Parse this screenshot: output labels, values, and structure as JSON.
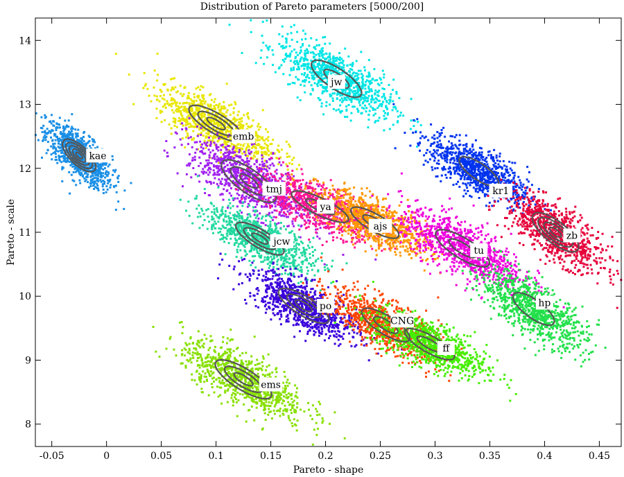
{
  "chart_data": {
    "type": "scatter",
    "title": "Distribution of Pareto parameters [5000/200]",
    "xlabel": "Pareto - shape",
    "ylabel": "Pareto - scale",
    "xlim": [
      -0.065,
      0.47
    ],
    "ylim": [
      7.65,
      14.35
    ],
    "xticks": [
      -0.05,
      0,
      0.05,
      0.1,
      0.15,
      0.2,
      0.25,
      0.3,
      0.35,
      0.4,
      0.45
    ],
    "xtick_labels": [
      "-0.05",
      "0",
      "0.05",
      "0.1",
      "0.15",
      "0.2",
      "0.25",
      "0.3",
      "0.35",
      "0.4",
      "0.45"
    ],
    "yticks": [
      8,
      9,
      10,
      11,
      12,
      13,
      14
    ],
    "ytick_labels": [
      "8",
      "9",
      "10",
      "11",
      "12",
      "13",
      "14"
    ],
    "grid": false,
    "legend": "none",
    "contour_color": "#555555",
    "series": [
      {
        "name": "kae",
        "center": [
          -0.025,
          12.2
        ],
        "spread": [
          0.015,
          0.25
        ],
        "color": "#1a8fe6",
        "label_at": [
          -0.008,
          12.2
        ],
        "rings": 5
      },
      {
        "name": "jw",
        "center": [
          0.21,
          13.4
        ],
        "spread": [
          0.026,
          0.3
        ],
        "color": "#00e5e5",
        "label_at": [
          0.21,
          13.35
        ],
        "rings": 2
      },
      {
        "name": "emb",
        "center": [
          0.1,
          12.7
        ],
        "spread": [
          0.027,
          0.28
        ],
        "color": "#e8e600",
        "label_at": [
          0.125,
          12.5
        ],
        "rings": 3
      },
      {
        "name": "tmj",
        "center": [
          0.13,
          11.8
        ],
        "spread": [
          0.027,
          0.33
        ],
        "color": "#a020f0",
        "label_at": [
          0.153,
          11.68
        ],
        "rings": 3
      },
      {
        "name": "ya",
        "center": [
          0.195,
          11.4
        ],
        "spread": [
          0.03,
          0.25
        ],
        "color": "#ff1493",
        "label_at": [
          0.2,
          11.4
        ],
        "rings": 2
      },
      {
        "name": "ajs",
        "center": [
          0.245,
          11.15
        ],
        "spread": [
          0.025,
          0.25
        ],
        "color": "#ff9900",
        "label_at": [
          0.25,
          11.1
        ],
        "rings": 2
      },
      {
        "name": "jcw",
        "center": [
          0.14,
          10.9
        ],
        "spread": [
          0.024,
          0.25
        ],
        "color": "#22d9a0",
        "label_at": [
          0.16,
          10.86
        ],
        "rings": 3
      },
      {
        "name": "kr1",
        "center": [
          0.34,
          11.95
        ],
        "spread": [
          0.023,
          0.27
        ],
        "color": "#0033ee",
        "label_at": [
          0.36,
          11.65
        ],
        "rings": 1
      },
      {
        "name": "tu",
        "center": [
          0.325,
          10.75
        ],
        "spread": [
          0.028,
          0.3
        ],
        "color": "#ee00dd",
        "label_at": [
          0.34,
          10.72
        ],
        "rings": 2
      },
      {
        "name": "zb",
        "center": [
          0.41,
          11.0
        ],
        "spread": [
          0.022,
          0.3
        ],
        "color": "#e6003a",
        "label_at": [
          0.425,
          10.95
        ],
        "rings": 4
      },
      {
        "name": "hp",
        "center": [
          0.39,
          9.8
        ],
        "spread": [
          0.024,
          0.3
        ],
        "color": "#22e04a",
        "label_at": [
          0.4,
          9.9
        ],
        "rings": 1
      },
      {
        "name": "po",
        "center": [
          0.18,
          9.85
        ],
        "spread": [
          0.025,
          0.27
        ],
        "color": "#3a00dd",
        "label_at": [
          0.2,
          9.85
        ],
        "rings": 3
      },
      {
        "name": "CNG",
        "center": [
          0.255,
          9.55
        ],
        "spread": [
          0.025,
          0.27
        ],
        "color": "#ff4400",
        "label_at": [
          0.27,
          9.62
        ],
        "rings": 2
      },
      {
        "name": "ff",
        "center": [
          0.295,
          9.25
        ],
        "spread": [
          0.026,
          0.25
        ],
        "color": "#44ee00",
        "label_at": [
          0.31,
          9.19
        ],
        "rings": 2
      },
      {
        "name": "ems",
        "center": [
          0.125,
          8.7
        ],
        "spread": [
          0.028,
          0.3
        ],
        "color": "#88e000",
        "label_at": [
          0.15,
          8.62
        ],
        "rings": 3
      }
    ]
  }
}
